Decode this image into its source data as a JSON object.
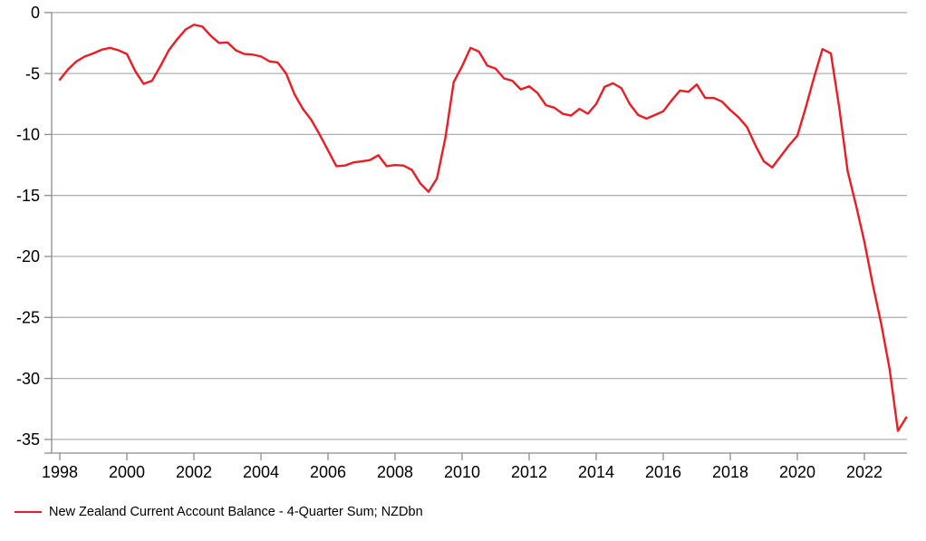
{
  "chart_data": {
    "type": "line",
    "title": "",
    "xlabel": "",
    "ylabel": "",
    "grid": "horizontal",
    "legend_position": "bottom-left",
    "x_ticks": [
      1998,
      2000,
      2002,
      2004,
      2006,
      2008,
      2010,
      2012,
      2014,
      2016,
      2018,
      2020,
      2022
    ],
    "y_ticks": [
      0,
      -5,
      -10,
      -15,
      -20,
      -25,
      -30,
      -35
    ],
    "xlim": [
      1997.8,
      2023.3
    ],
    "ylim": [
      -36.2,
      0
    ],
    "colors": {
      "line": "#ed1c24",
      "grid": "#b0b0b0",
      "axis": "#8c8c8c",
      "label": "#000000",
      "background": "#ffffff"
    },
    "series": [
      {
        "name": "New Zealand Current Account Balance - 4-Quarter Sum; NZDbn",
        "color": "#ed1c24",
        "start_year": 1998.0,
        "period_years": 0.25,
        "values": [
          -5.5,
          -4.65,
          -4.0,
          -3.6,
          -3.35,
          -3.05,
          -2.9,
          -3.1,
          -3.4,
          -4.8,
          -5.85,
          -5.6,
          -4.4,
          -3.1,
          -2.2,
          -1.4,
          -1.0,
          -1.15,
          -1.9,
          -2.5,
          -2.45,
          -3.1,
          -3.4,
          -3.45,
          -3.6,
          -4.0,
          -4.1,
          -5.0,
          -6.7,
          -7.9,
          -8.8,
          -10.0,
          -11.3,
          -12.6,
          -12.55,
          -12.3,
          -12.2,
          -12.1,
          -11.7,
          -12.6,
          -12.5,
          -12.55,
          -12.9,
          -14.0,
          -14.7,
          -13.6,
          -10.3,
          -5.7,
          -4.4,
          -2.9,
          -3.2,
          -4.35,
          -4.6,
          -5.4,
          -5.6,
          -6.3,
          -6.05,
          -6.6,
          -7.6,
          -7.8,
          -8.3,
          -8.45,
          -7.9,
          -8.3,
          -7.5,
          -6.1,
          -5.8,
          -6.2,
          -7.5,
          -8.4,
          -8.7,
          -8.4,
          -8.1,
          -7.2,
          -6.4,
          -6.5,
          -5.9,
          -7.0,
          -7.0,
          -7.3,
          -8.0,
          -8.6,
          -9.4,
          -10.9,
          -12.2,
          -12.7,
          -11.8,
          -10.9,
          -10.1,
          -7.8,
          -5.3,
          -3.0,
          -3.35,
          -7.8,
          -13.0,
          -15.8,
          -18.8,
          -22.3,
          -25.5,
          -29.2,
          -34.3,
          -33.2
        ]
      }
    ]
  }
}
